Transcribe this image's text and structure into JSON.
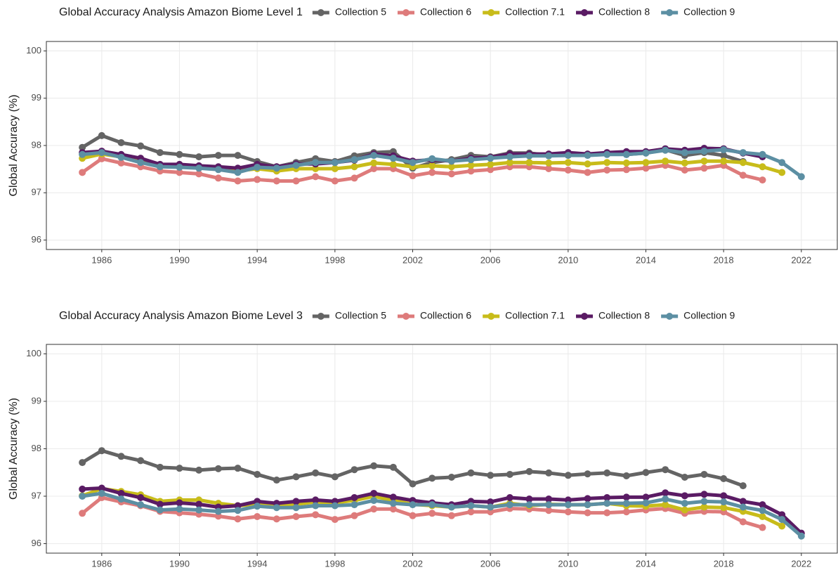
{
  "chart_data": [
    {
      "type": "line",
      "title": "Global Accuracy Analysis Amazon Biome Level 1",
      "y_label": "Global Accuracy (%)",
      "x": [
        1985,
        1986,
        1987,
        1988,
        1989,
        1990,
        1991,
        1992,
        1993,
        1994,
        1995,
        1996,
        1997,
        1998,
        1999,
        2000,
        2001,
        2002,
        2003,
        2004,
        2005,
        2006,
        2007,
        2008,
        2009,
        2010,
        2011,
        2012,
        2013,
        2014,
        2015,
        2016,
        2017,
        2018,
        2019,
        2020,
        2021,
        2022
      ],
      "xlim": [
        1983.15,
        2023.85
      ],
      "xticks": [
        1986,
        1990,
        1994,
        1998,
        2002,
        2006,
        2010,
        2014,
        2018,
        2022
      ],
      "ylim": [
        95.8,
        100.2
      ],
      "yticks": [
        96,
        97,
        98,
        99,
        100
      ],
      "grid": true,
      "series": [
        {
          "name": "Collection 5",
          "color": "#646464",
          "values": [
            97.96,
            98.21,
            98.06,
            97.99,
            97.85,
            97.81,
            97.76,
            97.79,
            97.79,
            97.66,
            97.55,
            97.64,
            97.72,
            97.66,
            97.78,
            97.85,
            97.87,
            97.52,
            97.64,
            97.7,
            97.79,
            97.76,
            97.84,
            97.84,
            97.79,
            97.84,
            97.81,
            97.84,
            97.81,
            97.84,
            97.91,
            97.79,
            97.85,
            97.79,
            97.66,
            null,
            null,
            null
          ]
        },
        {
          "name": "Collection 6",
          "color": "#de7b7b",
          "values": [
            97.43,
            97.72,
            97.63,
            97.55,
            97.46,
            97.43,
            97.4,
            97.31,
            97.25,
            97.28,
            97.25,
            97.25,
            97.34,
            97.25,
            97.31,
            97.51,
            97.51,
            97.36,
            97.43,
            97.4,
            97.46,
            97.49,
            97.55,
            97.55,
            97.51,
            97.48,
            97.43,
            97.48,
            97.49,
            97.52,
            97.58,
            97.48,
            97.52,
            97.58,
            97.37,
            97.27,
            null,
            null
          ]
        },
        {
          "name": "Collection 7.1",
          "color": "#c8bc1a",
          "values": [
            97.73,
            97.82,
            97.76,
            97.7,
            97.58,
            97.58,
            97.55,
            97.51,
            97.46,
            97.51,
            97.46,
            97.51,
            97.51,
            97.51,
            97.55,
            97.63,
            97.6,
            97.55,
            97.57,
            97.55,
            97.58,
            97.6,
            97.64,
            97.64,
            97.63,
            97.64,
            97.61,
            97.64,
            97.63,
            97.64,
            97.67,
            97.63,
            97.67,
            97.67,
            97.64,
            97.55,
            97.43,
            null
          ]
        },
        {
          "name": "Collection 8",
          "color": "#5a1b64",
          "values": [
            97.85,
            97.88,
            97.81,
            97.73,
            97.6,
            97.6,
            97.57,
            97.55,
            97.52,
            97.6,
            97.55,
            97.61,
            97.61,
            97.64,
            97.69,
            97.82,
            97.78,
            97.67,
            97.7,
            97.67,
            97.73,
            97.75,
            97.82,
            97.82,
            97.82,
            97.85,
            97.82,
            97.85,
            97.87,
            97.87,
            97.93,
            97.9,
            97.94,
            97.93,
            97.84,
            97.76,
            null,
            null
          ]
        },
        {
          "name": "Collection 9",
          "color": "#5c8fa3",
          "values": [
            97.81,
            97.85,
            97.75,
            97.64,
            97.55,
            97.54,
            97.52,
            97.49,
            97.43,
            97.54,
            97.52,
            97.58,
            97.64,
            97.64,
            97.7,
            97.79,
            97.73,
            97.64,
            97.72,
            97.67,
            97.7,
            97.73,
            97.76,
            97.78,
            97.78,
            97.79,
            97.79,
            97.81,
            97.81,
            97.84,
            97.9,
            97.85,
            97.88,
            97.91,
            97.85,
            97.81,
            97.64,
            97.34
          ]
        }
      ]
    },
    {
      "type": "line",
      "title": "Global Accuracy Analysis Amazon Biome Level 3",
      "y_label": "Global Accuracy (%)",
      "x": [
        1985,
        1986,
        1987,
        1988,
        1989,
        1990,
        1991,
        1992,
        1993,
        1994,
        1995,
        1996,
        1997,
        1998,
        1999,
        2000,
        2001,
        2002,
        2003,
        2004,
        2005,
        2006,
        2007,
        2008,
        2009,
        2010,
        2011,
        2012,
        2013,
        2014,
        2015,
        2016,
        2017,
        2018,
        2019,
        2020,
        2021,
        2022
      ],
      "xlim": [
        1983.15,
        2023.85
      ],
      "xticks": [
        1986,
        1990,
        1994,
        1998,
        2002,
        2006,
        2010,
        2014,
        2018,
        2022
      ],
      "ylim": [
        95.8,
        100.2
      ],
      "yticks": [
        96,
        97,
        98,
        99,
        100
      ],
      "grid": true,
      "series": [
        {
          "name": "Collection 5",
          "color": "#646464",
          "values": [
            97.71,
            97.96,
            97.84,
            97.75,
            97.61,
            97.59,
            97.55,
            97.58,
            97.59,
            97.46,
            97.34,
            97.41,
            97.49,
            97.41,
            97.56,
            97.64,
            97.61,
            97.26,
            97.38,
            97.4,
            97.49,
            97.44,
            97.46,
            97.52,
            97.49,
            97.44,
            97.47,
            97.49,
            97.43,
            97.5,
            97.56,
            97.4,
            97.46,
            97.37,
            97.22,
            null,
            null,
            null
          ]
        },
        {
          "name": "Collection 6",
          "color": "#de7b7b",
          "values": [
            96.64,
            96.97,
            96.88,
            96.8,
            96.68,
            96.65,
            96.62,
            96.58,
            96.52,
            96.57,
            96.52,
            96.57,
            96.61,
            96.51,
            96.59,
            96.73,
            96.73,
            96.59,
            96.64,
            96.59,
            96.67,
            96.67,
            96.74,
            96.73,
            96.7,
            96.67,
            96.65,
            96.65,
            96.67,
            96.71,
            96.74,
            96.64,
            96.68,
            96.67,
            96.46,
            96.34,
            null,
            null
          ]
        },
        {
          "name": "Collection 7.1",
          "color": "#c8bc1a",
          "values": [
            97.01,
            97.16,
            97.1,
            97.03,
            96.89,
            96.92,
            96.92,
            96.85,
            96.8,
            96.83,
            96.8,
            96.83,
            96.88,
            96.86,
            96.91,
            97.0,
            96.91,
            96.83,
            96.8,
            96.77,
            96.8,
            96.77,
            96.85,
            96.8,
            96.83,
            96.82,
            96.82,
            96.85,
            96.8,
            96.79,
            96.82,
            96.71,
            96.77,
            96.76,
            96.68,
            96.57,
            96.37,
            null
          ]
        },
        {
          "name": "Collection 8",
          "color": "#5a1b64",
          "values": [
            97.15,
            97.17,
            97.06,
            96.97,
            96.83,
            96.86,
            96.83,
            96.77,
            96.8,
            96.89,
            96.85,
            96.89,
            96.92,
            96.89,
            96.97,
            97.06,
            96.98,
            96.91,
            96.86,
            96.82,
            96.89,
            96.88,
            96.97,
            96.94,
            96.94,
            96.92,
            96.95,
            96.97,
            96.98,
            96.98,
            97.07,
            97.01,
            97.04,
            97.01,
            96.89,
            96.82,
            96.61,
            96.22
          ]
        },
        {
          "name": "Collection 9",
          "color": "#5c8fa3",
          "values": [
            97.0,
            97.06,
            96.94,
            96.82,
            96.71,
            96.73,
            96.71,
            96.68,
            96.7,
            96.79,
            96.76,
            96.76,
            96.8,
            96.8,
            96.82,
            96.91,
            96.85,
            96.82,
            96.82,
            96.77,
            96.8,
            96.77,
            96.82,
            96.82,
            96.82,
            96.82,
            96.82,
            96.85,
            96.85,
            96.86,
            96.94,
            96.85,
            96.89,
            96.88,
            96.77,
            96.7,
            96.51,
            96.16
          ]
        }
      ]
    }
  ]
}
